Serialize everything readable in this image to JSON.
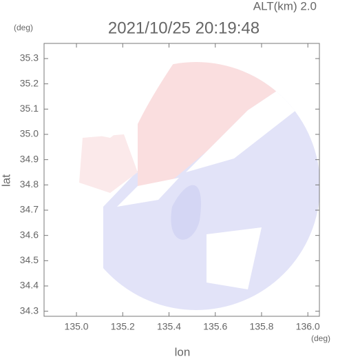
{
  "chart_data": {
    "type": "map",
    "title": "2021/10/25 20:19:48",
    "subtitle": "ALT(km) 2.0",
    "x_label": "lon",
    "y_label": "lat",
    "x_unit": "(deg)",
    "y_unit": "(deg)",
    "xlim": [
      134.86,
      136.05
    ],
    "ylim": [
      34.28,
      35.36
    ],
    "xticks": [
      {
        "value": 135,
        "label": "135.0"
      },
      135.2,
      135.4,
      135.6,
      135.8,
      {
        "value": 136,
        "label": "136.0"
      }
    ],
    "yticks": [
      34.3,
      34.4,
      34.5,
      34.6,
      34.7,
      34.8,
      34.9,
      {
        "value": 35,
        "label": "35.0"
      },
      35.1,
      35.2,
      35.3
    ]
  }
}
